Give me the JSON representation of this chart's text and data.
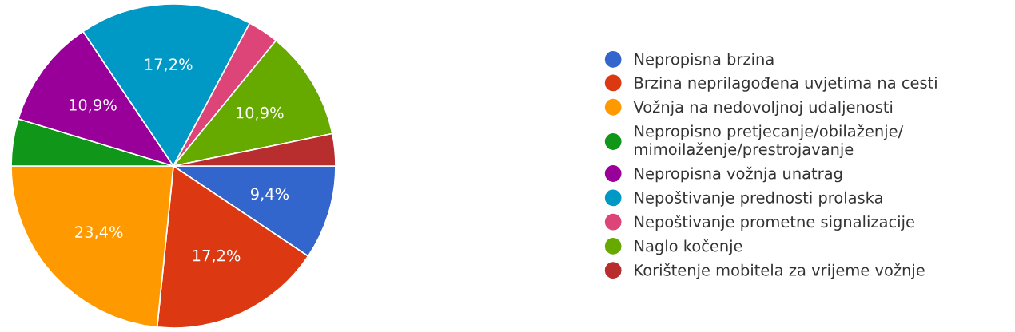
{
  "chart_data": {
    "type": "pie",
    "categories": [
      "Nepropisna brzina",
      "Brzina neprilagođena uvjetima na cesti",
      "Vožnja na nedovoljnoj udaljenosti",
      "Nepropisno pretjecanje/obilaženje/\nmimoilaženje/prestrojavanje",
      "Nepropisna vožnja unatrag",
      "Nepoštivanje prednosti prolaska",
      "Nepoštivanje prometne signalizacije",
      "Naglo kočenje",
      "Korištenje mobitela za vrijeme vožnje"
    ],
    "values": [
      9.4,
      17.2,
      23.4,
      4.7,
      10.9,
      17.2,
      3.1,
      10.9,
      3.2
    ],
    "value_labels": [
      "9,4%",
      "17,2%",
      "23,4%",
      null,
      "10,9%",
      "17,2%",
      null,
      "10,9%",
      null
    ],
    "colors": [
      "#3366cc",
      "#dc3912",
      "#ff9900",
      "#109618",
      "#990099",
      "#0099c6",
      "#dd4477",
      "#66aa00",
      "#b82e2e"
    ],
    "legend": "right"
  }
}
